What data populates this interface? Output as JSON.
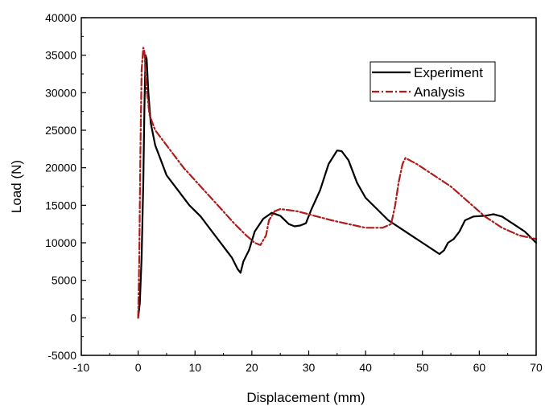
{
  "chart_data": {
    "type": "line",
    "title": "",
    "xlabel": "Displacement (mm)",
    "ylabel": "Load (N)",
    "xlim": [
      -10,
      70
    ],
    "ylim": [
      -5000,
      40000
    ],
    "x_ticks": [
      -10,
      0,
      10,
      20,
      30,
      40,
      50,
      60,
      70
    ],
    "y_ticks": [
      -5000,
      0,
      5000,
      10000,
      15000,
      20000,
      25000,
      30000,
      35000,
      40000
    ],
    "x_tick_labels": [
      "-10",
      "0",
      "10",
      "20",
      "30",
      "40",
      "50",
      "60",
      "70"
    ],
    "y_tick_labels": [
      "-5000",
      "0",
      "5000",
      "10000",
      "15000",
      "20000",
      "25000",
      "30000",
      "35000",
      "40000"
    ],
    "grid": false,
    "legend_position": "top-right",
    "series": [
      {
        "name": "Experiment",
        "color": "#000000",
        "style": "solid",
        "points": [
          [
            0,
            0
          ],
          [
            0.3,
            2000
          ],
          [
            0.6,
            8000
          ],
          [
            0.9,
            18000
          ],
          [
            1.1,
            28000
          ],
          [
            1.3,
            35000
          ],
          [
            1.5,
            34500
          ],
          [
            1.8,
            30000
          ],
          [
            2.2,
            26000
          ],
          [
            3,
            23000
          ],
          [
            4,
            21000
          ],
          [
            5,
            19000
          ],
          [
            7,
            17000
          ],
          [
            9,
            15000
          ],
          [
            11,
            13500
          ],
          [
            13,
            11500
          ],
          [
            15,
            9500
          ],
          [
            16.5,
            8000
          ],
          [
            17.5,
            6500
          ],
          [
            18,
            6000
          ],
          [
            18.5,
            7500
          ],
          [
            19.5,
            9000
          ],
          [
            20.5,
            11500
          ],
          [
            22,
            13200
          ],
          [
            23.5,
            14000
          ],
          [
            25,
            13600
          ],
          [
            26.5,
            12500
          ],
          [
            27.5,
            12200
          ],
          [
            28.5,
            12300
          ],
          [
            29.5,
            12600
          ],
          [
            30.5,
            14500
          ],
          [
            32,
            17000
          ],
          [
            33.5,
            20500
          ],
          [
            35,
            22300
          ],
          [
            35.8,
            22200
          ],
          [
            37,
            21000
          ],
          [
            38.5,
            18000
          ],
          [
            40,
            16000
          ],
          [
            42,
            14500
          ],
          [
            44,
            13000
          ],
          [
            46,
            12000
          ],
          [
            48,
            11000
          ],
          [
            50,
            10000
          ],
          [
            52,
            9000
          ],
          [
            53,
            8500
          ],
          [
            53.8,
            9000
          ],
          [
            54.5,
            10000
          ],
          [
            55.5,
            10500
          ],
          [
            56.5,
            11500
          ],
          [
            57.5,
            13000
          ],
          [
            59,
            13500
          ],
          [
            61,
            13600
          ],
          [
            62.5,
            13800
          ],
          [
            64,
            13500
          ],
          [
            66,
            12500
          ],
          [
            68,
            11500
          ],
          [
            70,
            10000
          ]
        ]
      },
      {
        "name": "Analysis",
        "color": "#b01c1c",
        "style": "dash-dot",
        "points": [
          [
            0,
            0
          ],
          [
            0.2,
            8000
          ],
          [
            0.4,
            22000
          ],
          [
            0.6,
            33000
          ],
          [
            0.9,
            36000
          ],
          [
            1.1,
            35500
          ],
          [
            1.4,
            31000
          ],
          [
            2,
            27000
          ],
          [
            3,
            25000
          ],
          [
            5,
            23000
          ],
          [
            8,
            20000
          ],
          [
            11,
            17500
          ],
          [
            14,
            15000
          ],
          [
            17,
            12500
          ],
          [
            19,
            11000
          ],
          [
            20.5,
            10000
          ],
          [
            21.5,
            9700
          ],
          [
            22.5,
            11000
          ],
          [
            23,
            13000
          ],
          [
            24,
            14200
          ],
          [
            25,
            14500
          ],
          [
            28,
            14200
          ],
          [
            31,
            13600
          ],
          [
            34,
            13000
          ],
          [
            37,
            12500
          ],
          [
            40,
            12000
          ],
          [
            43,
            12000
          ],
          [
            44.5,
            12500
          ],
          [
            45.2,
            15000
          ],
          [
            45.8,
            18000
          ],
          [
            46.5,
            20500
          ],
          [
            47,
            21300
          ],
          [
            49,
            20500
          ],
          [
            52,
            19000
          ],
          [
            55,
            17500
          ],
          [
            58,
            15500
          ],
          [
            61,
            13500
          ],
          [
            64,
            12000
          ],
          [
            67,
            11000
          ],
          [
            70,
            10500
          ]
        ]
      }
    ]
  }
}
